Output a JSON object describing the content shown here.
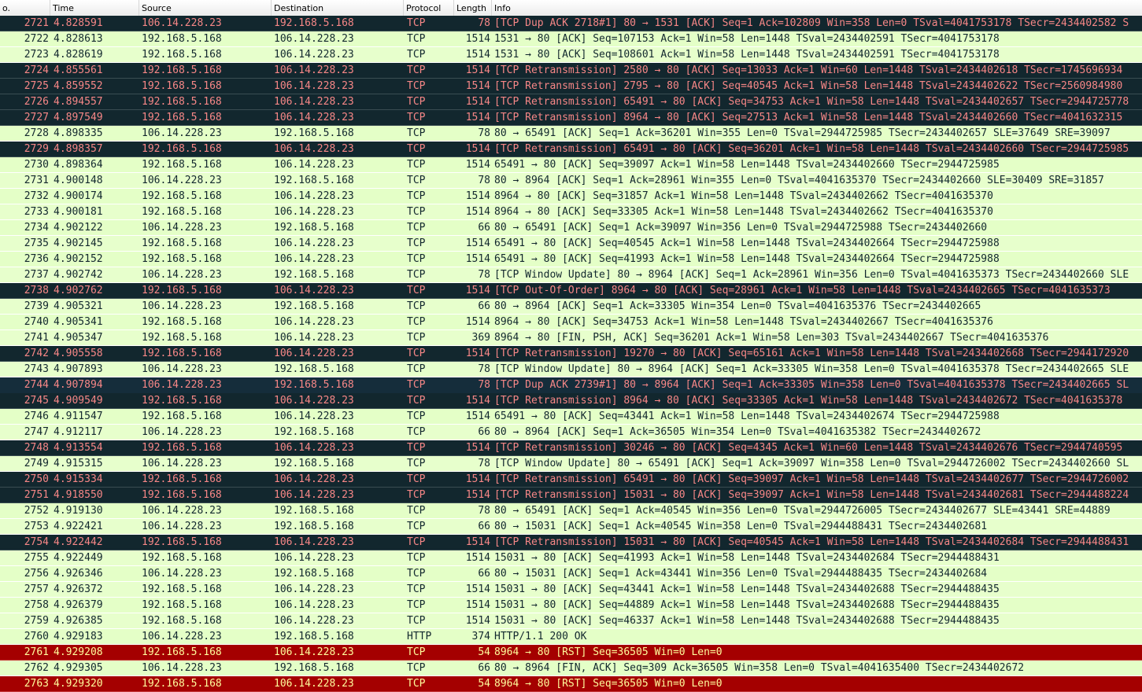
{
  "columns": {
    "no": "o.",
    "time": "Time",
    "source": "Source",
    "destination": "Destination",
    "protocol": "Protocol",
    "length": "Length",
    "info": "Info"
  },
  "colors": {
    "light_bg": "#e4ffc7",
    "dark_bg": "#12272e",
    "dark_fg": "#f78787",
    "rst_bg": "#a40000",
    "rst_fg": "#fffc9c"
  },
  "packets": [
    {
      "style": "dark",
      "no": "2721",
      "time": "4.828591",
      "src": "106.14.228.23",
      "dst": "192.168.5.168",
      "proto": "TCP",
      "len": "78",
      "info": "[TCP Dup ACK 2718#1] 80 → 1531 [ACK] Seq=1 Ack=102809 Win=358 Len=0 TSval=4041753178 TSecr=2434402582 S"
    },
    {
      "style": "light",
      "no": "2722",
      "time": "4.828613",
      "src": "192.168.5.168",
      "dst": "106.14.228.23",
      "proto": "TCP",
      "len": "1514",
      "info": "1531 → 80 [ACK] Seq=107153 Ack=1 Win=58 Len=1448 TSval=2434402591 TSecr=4041753178"
    },
    {
      "style": "light",
      "no": "2723",
      "time": "4.828619",
      "src": "192.168.5.168",
      "dst": "106.14.228.23",
      "proto": "TCP",
      "len": "1514",
      "info": "1531 → 80 [ACK] Seq=108601 Ack=1 Win=58 Len=1448 TSval=2434402591 TSecr=4041753178"
    },
    {
      "style": "dark",
      "no": "2724",
      "time": "4.855561",
      "src": "192.168.5.168",
      "dst": "106.14.228.23",
      "proto": "TCP",
      "len": "1514",
      "info": "[TCP Retransmission] 2580 → 80 [ACK] Seq=13033 Ack=1 Win=60 Len=1448 TSval=2434402618 TSecr=1745696934"
    },
    {
      "style": "dark",
      "no": "2725",
      "time": "4.859552",
      "src": "192.168.5.168",
      "dst": "106.14.228.23",
      "proto": "TCP",
      "len": "1514",
      "info": "[TCP Retransmission] 2795 → 80 [ACK] Seq=40545 Ack=1 Win=58 Len=1448 TSval=2434402622 TSecr=2560984980"
    },
    {
      "style": "dark",
      "no": "2726",
      "time": "4.894557",
      "src": "192.168.5.168",
      "dst": "106.14.228.23",
      "proto": "TCP",
      "len": "1514",
      "info": "[TCP Retransmission] 65491 → 80 [ACK] Seq=34753 Ack=1 Win=58 Len=1448 TSval=2434402657 TSecr=2944725778"
    },
    {
      "style": "dark",
      "no": "2727",
      "time": "4.897549",
      "src": "192.168.5.168",
      "dst": "106.14.228.23",
      "proto": "TCP",
      "len": "1514",
      "info": "[TCP Retransmission] 8964 → 80 [ACK] Seq=27513 Ack=1 Win=58 Len=1448 TSval=2434402660 TSecr=4041632315"
    },
    {
      "style": "light",
      "no": "2728",
      "time": "4.898335",
      "src": "106.14.228.23",
      "dst": "192.168.5.168",
      "proto": "TCP",
      "len": "78",
      "info": "80 → 65491 [ACK] Seq=1 Ack=36201 Win=355 Len=0 TSval=2944725985 TSecr=2434402657 SLE=37649 SRE=39097"
    },
    {
      "style": "dark",
      "no": "2729",
      "time": "4.898357",
      "src": "192.168.5.168",
      "dst": "106.14.228.23",
      "proto": "TCP",
      "len": "1514",
      "info": "[TCP Retransmission] 65491 → 80 [ACK] Seq=36201 Ack=1 Win=58 Len=1448 TSval=2434402660 TSecr=2944725985"
    },
    {
      "style": "light",
      "no": "2730",
      "time": "4.898364",
      "src": "192.168.5.168",
      "dst": "106.14.228.23",
      "proto": "TCP",
      "len": "1514",
      "info": "65491 → 80 [ACK] Seq=39097 Ack=1 Win=58 Len=1448 TSval=2434402660 TSecr=2944725985"
    },
    {
      "style": "light",
      "no": "2731",
      "time": "4.900148",
      "src": "106.14.228.23",
      "dst": "192.168.5.168",
      "proto": "TCP",
      "len": "78",
      "info": "80 → 8964 [ACK] Seq=1 Ack=28961 Win=355 Len=0 TSval=4041635370 TSecr=2434402660 SLE=30409 SRE=31857"
    },
    {
      "style": "light",
      "no": "2732",
      "time": "4.900174",
      "src": "192.168.5.168",
      "dst": "106.14.228.23",
      "proto": "TCP",
      "len": "1514",
      "info": "8964 → 80 [ACK] Seq=31857 Ack=1 Win=58 Len=1448 TSval=2434402662 TSecr=4041635370"
    },
    {
      "style": "light",
      "no": "2733",
      "time": "4.900181",
      "src": "192.168.5.168",
      "dst": "106.14.228.23",
      "proto": "TCP",
      "len": "1514",
      "info": "8964 → 80 [ACK] Seq=33305 Ack=1 Win=58 Len=1448 TSval=2434402662 TSecr=4041635370"
    },
    {
      "style": "light",
      "no": "2734",
      "time": "4.902122",
      "src": "106.14.228.23",
      "dst": "192.168.5.168",
      "proto": "TCP",
      "len": "66",
      "info": "80 → 65491 [ACK] Seq=1 Ack=39097 Win=356 Len=0 TSval=2944725988 TSecr=2434402660"
    },
    {
      "style": "light",
      "no": "2735",
      "time": "4.902145",
      "src": "192.168.5.168",
      "dst": "106.14.228.23",
      "proto": "TCP",
      "len": "1514",
      "info": "65491 → 80 [ACK] Seq=40545 Ack=1 Win=58 Len=1448 TSval=2434402664 TSecr=2944725988"
    },
    {
      "style": "light",
      "no": "2736",
      "time": "4.902152",
      "src": "192.168.5.168",
      "dst": "106.14.228.23",
      "proto": "TCP",
      "len": "1514",
      "info": "65491 → 80 [ACK] Seq=41993 Ack=1 Win=58 Len=1448 TSval=2434402664 TSecr=2944725988"
    },
    {
      "style": "light",
      "no": "2737",
      "time": "4.902742",
      "src": "106.14.228.23",
      "dst": "192.168.5.168",
      "proto": "TCP",
      "len": "78",
      "info": "[TCP Window Update] 80 → 8964 [ACK] Seq=1 Ack=28961 Win=356 Len=0 TSval=4041635373 TSecr=2434402660 SLE"
    },
    {
      "style": "dark",
      "no": "2738",
      "time": "4.902762",
      "src": "192.168.5.168",
      "dst": "106.14.228.23",
      "proto": "TCP",
      "len": "1514",
      "info": "[TCP Out-Of-Order] 8964 → 80 [ACK] Seq=28961 Ack=1 Win=58 Len=1448 TSval=2434402665 TSecr=4041635373"
    },
    {
      "style": "light",
      "no": "2739",
      "time": "4.905321",
      "src": "106.14.228.23",
      "dst": "192.168.5.168",
      "proto": "TCP",
      "len": "66",
      "info": "80 → 8964 [ACK] Seq=1 Ack=33305 Win=354 Len=0 TSval=4041635376 TSecr=2434402665"
    },
    {
      "style": "light",
      "no": "2740",
      "time": "4.905341",
      "src": "192.168.5.168",
      "dst": "106.14.228.23",
      "proto": "TCP",
      "len": "1514",
      "info": "8964 → 80 [ACK] Seq=34753 Ack=1 Win=58 Len=1448 TSval=2434402667 TSecr=4041635376"
    },
    {
      "style": "light",
      "no": "2741",
      "time": "4.905347",
      "src": "192.168.5.168",
      "dst": "106.14.228.23",
      "proto": "TCP",
      "len": "369",
      "info": "8964 → 80 [FIN, PSH, ACK] Seq=36201 Ack=1 Win=58 Len=303 TSval=2434402667 TSecr=4041635376"
    },
    {
      "style": "dark",
      "no": "2742",
      "time": "4.905558",
      "src": "192.168.5.168",
      "dst": "106.14.228.23",
      "proto": "TCP",
      "len": "1514",
      "info": "[TCP Retransmission] 19270 → 80 [ACK] Seq=65161 Ack=1 Win=58 Len=1448 TSval=2434402668 TSecr=2944172920"
    },
    {
      "style": "light",
      "no": "2743",
      "time": "4.907893",
      "src": "106.14.228.23",
      "dst": "192.168.5.168",
      "proto": "TCP",
      "len": "78",
      "info": "[TCP Window Update] 80 → 8964 [ACK] Seq=1 Ack=33305 Win=358 Len=0 TSval=4041635378 TSecr=2434402665 SLE"
    },
    {
      "style": "sel",
      "no": "2744",
      "time": "4.907894",
      "src": "106.14.228.23",
      "dst": "192.168.5.168",
      "proto": "TCP",
      "len": "78",
      "info": "[TCP Dup ACK 2739#1] 80 → 8964 [ACK] Seq=1 Ack=33305 Win=358 Len=0 TSval=4041635378 TSecr=2434402665 SL"
    },
    {
      "style": "dark",
      "no": "2745",
      "time": "4.909549",
      "src": "192.168.5.168",
      "dst": "106.14.228.23",
      "proto": "TCP",
      "len": "1514",
      "info": "[TCP Retransmission] 8964 → 80 [ACK] Seq=33305 Ack=1 Win=58 Len=1448 TSval=2434402672 TSecr=4041635378"
    },
    {
      "style": "light",
      "no": "2746",
      "time": "4.911547",
      "src": "192.168.5.168",
      "dst": "106.14.228.23",
      "proto": "TCP",
      "len": "1514",
      "info": "65491 → 80 [ACK] Seq=43441 Ack=1 Win=58 Len=1448 TSval=2434402674 TSecr=2944725988"
    },
    {
      "style": "light",
      "no": "2747",
      "time": "4.912117",
      "src": "106.14.228.23",
      "dst": "192.168.5.168",
      "proto": "TCP",
      "len": "66",
      "info": "80 → 8964 [ACK] Seq=1 Ack=36505 Win=354 Len=0 TSval=4041635382 TSecr=2434402672"
    },
    {
      "style": "dark",
      "no": "2748",
      "time": "4.913554",
      "src": "192.168.5.168",
      "dst": "106.14.228.23",
      "proto": "TCP",
      "len": "1514",
      "info": "[TCP Retransmission] 30246 → 80 [ACK] Seq=4345 Ack=1 Win=60 Len=1448 TSval=2434402676 TSecr=2944740595"
    },
    {
      "style": "light",
      "no": "2749",
      "time": "4.915315",
      "src": "106.14.228.23",
      "dst": "192.168.5.168",
      "proto": "TCP",
      "len": "78",
      "info": "[TCP Window Update] 80 → 65491 [ACK] Seq=1 Ack=39097 Win=358 Len=0 TSval=2944726002 TSecr=2434402660 SL"
    },
    {
      "style": "dark",
      "no": "2750",
      "time": "4.915334",
      "src": "192.168.5.168",
      "dst": "106.14.228.23",
      "proto": "TCP",
      "len": "1514",
      "info": "[TCP Retransmission] 65491 → 80 [ACK] Seq=39097 Ack=1 Win=58 Len=1448 TSval=2434402677 TSecr=2944726002"
    },
    {
      "style": "dark",
      "no": "2751",
      "time": "4.918550",
      "src": "192.168.5.168",
      "dst": "106.14.228.23",
      "proto": "TCP",
      "len": "1514",
      "info": "[TCP Retransmission] 15031 → 80 [ACK] Seq=39097 Ack=1 Win=58 Len=1448 TSval=2434402681 TSecr=2944488224"
    },
    {
      "style": "light",
      "no": "2752",
      "time": "4.919130",
      "src": "106.14.228.23",
      "dst": "192.168.5.168",
      "proto": "TCP",
      "len": "78",
      "info": "80 → 65491 [ACK] Seq=1 Ack=40545 Win=356 Len=0 TSval=2944726005 TSecr=2434402677 SLE=43441 SRE=44889"
    },
    {
      "style": "light",
      "no": "2753",
      "time": "4.922421",
      "src": "106.14.228.23",
      "dst": "192.168.5.168",
      "proto": "TCP",
      "len": "66",
      "info": "80 → 15031 [ACK] Seq=1 Ack=40545 Win=358 Len=0 TSval=2944488431 TSecr=2434402681"
    },
    {
      "style": "dark",
      "no": "2754",
      "time": "4.922442",
      "src": "192.168.5.168",
      "dst": "106.14.228.23",
      "proto": "TCP",
      "len": "1514",
      "info": "[TCP Retransmission] 15031 → 80 [ACK] Seq=40545 Ack=1 Win=58 Len=1448 TSval=2434402684 TSecr=2944488431"
    },
    {
      "style": "light",
      "no": "2755",
      "time": "4.922449",
      "src": "192.168.5.168",
      "dst": "106.14.228.23",
      "proto": "TCP",
      "len": "1514",
      "info": "15031 → 80 [ACK] Seq=41993 Ack=1 Win=58 Len=1448 TSval=2434402684 TSecr=2944488431"
    },
    {
      "style": "light",
      "no": "2756",
      "time": "4.926346",
      "src": "106.14.228.23",
      "dst": "192.168.5.168",
      "proto": "TCP",
      "len": "66",
      "info": "80 → 15031 [ACK] Seq=1 Ack=43441 Win=356 Len=0 TSval=2944488435 TSecr=2434402684"
    },
    {
      "style": "light",
      "no": "2757",
      "time": "4.926372",
      "src": "192.168.5.168",
      "dst": "106.14.228.23",
      "proto": "TCP",
      "len": "1514",
      "info": "15031 → 80 [ACK] Seq=43441 Ack=1 Win=58 Len=1448 TSval=2434402688 TSecr=2944488435"
    },
    {
      "style": "light",
      "no": "2758",
      "time": "4.926379",
      "src": "192.168.5.168",
      "dst": "106.14.228.23",
      "proto": "TCP",
      "len": "1514",
      "info": "15031 → 80 [ACK] Seq=44889 Ack=1 Win=58 Len=1448 TSval=2434402688 TSecr=2944488435"
    },
    {
      "style": "light",
      "no": "2759",
      "time": "4.926385",
      "src": "192.168.5.168",
      "dst": "106.14.228.23",
      "proto": "TCP",
      "len": "1514",
      "info": "15031 → 80 [ACK] Seq=46337 Ack=1 Win=58 Len=1448 TSval=2434402688 TSecr=2944488435"
    },
    {
      "style": "http",
      "no": "2760",
      "time": "4.929183",
      "src": "106.14.228.23",
      "dst": "192.168.5.168",
      "proto": "HTTP",
      "len": "374",
      "info": "HTTP/1.1 200 OK"
    },
    {
      "style": "rst",
      "no": "2761",
      "time": "4.929208",
      "src": "192.168.5.168",
      "dst": "106.14.228.23",
      "proto": "TCP",
      "len": "54",
      "info": "8964 → 80 [RST] Seq=36505 Win=0 Len=0"
    },
    {
      "style": "light",
      "no": "2762",
      "time": "4.929305",
      "src": "106.14.228.23",
      "dst": "192.168.5.168",
      "proto": "TCP",
      "len": "66",
      "info": "80 → 8964 [FIN, ACK] Seq=309 Ack=36505 Win=358 Len=0 TSval=4041635400 TSecr=2434402672"
    },
    {
      "style": "rst",
      "no": "2763",
      "time": "4.929320",
      "src": "192.168.5.168",
      "dst": "106.14.228.23",
      "proto": "TCP",
      "len": "54",
      "info": "8964 → 80 [RST] Seq=36505 Win=0 Len=0"
    }
  ]
}
